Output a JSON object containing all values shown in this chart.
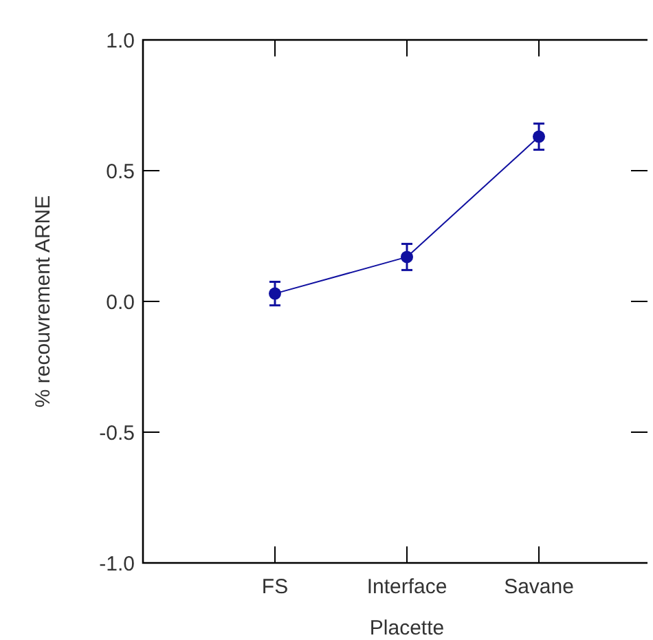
{
  "chart_data": {
    "type": "line",
    "xlabel": "Placette",
    "ylabel": "% recouvrement ARNE",
    "categories": [
      "FS",
      "Interface",
      "Savane"
    ],
    "series": [
      {
        "color": "#1010a0",
        "values": [
          0.03,
          0.17,
          0.63
        ],
        "errors": [
          0.045,
          0.05,
          0.05
        ]
      }
    ],
    "ylim": [
      -1,
      1
    ],
    "yticks": [
      {
        "value": -1,
        "label": "-1.0"
      },
      {
        "value": -0.5,
        "label": "-0.5"
      },
      {
        "value": 0,
        "label": "0.0"
      },
      {
        "value": 0.5,
        "label": "0.5"
      },
      {
        "value": 1,
        "label": "1.0"
      }
    ],
    "marker": "circle",
    "line_style": "solid",
    "grid": false
  }
}
